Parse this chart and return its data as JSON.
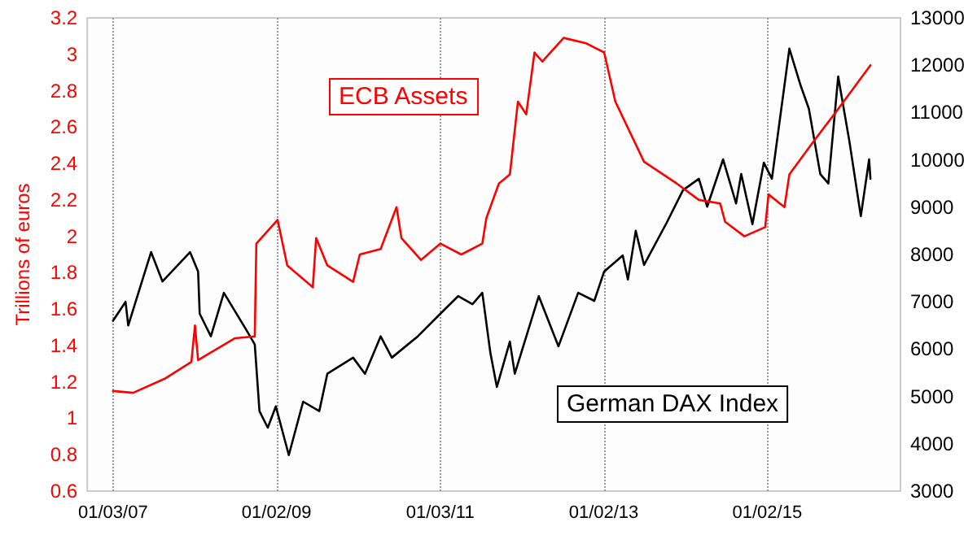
{
  "chart_data": {
    "type": "line",
    "ylabel": "Trillions of euros",
    "xlim": [
      "2006-09-10",
      "2016-08-19"
    ],
    "xticks": [
      {
        "value": "2007-01-03",
        "label": "01/03/07"
      },
      {
        "value": "2009-01-02",
        "label": "01/02/09"
      },
      {
        "value": "2011-01-03",
        "label": "01/03/11"
      },
      {
        "value": "2013-01-02",
        "label": "01/02/13"
      },
      {
        "value": "2015-01-02",
        "label": "01/02/15"
      }
    ],
    "ylim": [
      0.6,
      3.2
    ],
    "yticks": [
      0.6,
      0.8,
      1,
      1.2,
      1.4,
      1.6,
      1.8,
      2,
      2.2,
      2.4,
      2.6,
      2.8,
      3,
      3.2
    ],
    "y2lim": [
      3000,
      13000
    ],
    "y2ticks": [
      3000,
      4000,
      5000,
      6000,
      7000,
      8000,
      9000,
      10000,
      11000,
      12000,
      13000
    ],
    "grid": "x",
    "legend": false,
    "marker": "none",
    "line_style": "solid",
    "series": [
      {
        "name": "ECB Assets",
        "color": "#ff0000",
        "x": [
          "2007-01-03",
          "2007-04-03",
          "2007-08-26",
          "2007-12-19",
          "2008-01-04",
          "2008-01-18",
          "2008-07-01",
          "2008-09-27",
          "2008-10-04",
          "2009-01-07",
          "2009-02-19",
          "2009-06-13",
          "2009-06-28",
          "2009-08-17",
          "2009-12-10",
          "2010-01-09",
          "2010-04-12",
          "2010-06-22",
          "2010-07-14",
          "2010-10-09",
          "2011-01-04",
          "2011-04-07",
          "2011-07-10",
          "2011-07-28",
          "2011-09-22",
          "2011-11-10",
          "2011-12-16",
          "2012-01-22",
          "2012-02-28",
          "2012-04-03",
          "2012-07-07",
          "2012-10-16",
          "2013-01-04",
          "2013-02-23",
          "2013-07-01",
          "2013-11-24",
          "2014-03-03",
          "2014-06-06",
          "2014-06-28",
          "2014-09-22",
          "2014-12-24",
          "2015-01-08",
          "2015-03-20",
          "2015-04-11",
          "2015-07-21",
          "2015-11-15",
          "2016-04-07"
        ],
        "values": [
          1.15,
          1.14,
          1.22,
          1.31,
          1.51,
          1.32,
          1.44,
          1.45,
          1.96,
          2.09,
          1.84,
          1.72,
          1.99,
          1.84,
          1.75,
          1.9,
          1.93,
          2.16,
          1.99,
          1.87,
          1.96,
          1.9,
          1.96,
          2.1,
          2.29,
          2.34,
          2.74,
          2.67,
          3.01,
          2.96,
          3.09,
          3.06,
          3.01,
          2.74,
          2.41,
          2.29,
          2.2,
          2.18,
          2.08,
          2.0,
          2.05,
          2.23,
          2.16,
          2.34,
          2.51,
          2.7,
          2.94
        ]
      },
      {
        "name": "German DAX Index",
        "color": "#000000",
        "axis": "y2",
        "x": [
          "2007-01-03",
          "2007-02-28",
          "2007-03-12",
          "2007-06-22",
          "2007-08-12",
          "2007-12-13",
          "2008-01-18",
          "2008-01-25",
          "2008-03-15",
          "2008-05-12",
          "2008-08-21",
          "2008-09-27",
          "2008-10-18",
          "2008-11-24",
          "2008-12-30",
          "2009-02-26",
          "2009-05-01",
          "2009-07-12",
          "2009-08-17",
          "2009-12-10",
          "2010-02-01",
          "2010-04-12",
          "2010-06-01",
          "2010-09-25",
          "2011-01-04",
          "2011-03-24",
          "2011-05-27",
          "2011-07-10",
          "2011-08-15",
          "2011-09-13",
          "2011-11-10",
          "2011-12-02",
          "2012-03-18",
          "2012-06-14",
          "2012-09-10",
          "2012-11-21",
          "2013-01-04",
          "2013-03-28",
          "2013-04-20",
          "2013-05-25",
          "2013-07-01",
          "2013-10-10",
          "2013-12-22",
          "2014-03-03",
          "2014-04-09",
          "2014-06-19",
          "2014-08-16",
          "2014-09-08",
          "2014-10-28",
          "2014-12-18",
          "2015-01-23",
          "2015-02-28",
          "2015-04-11",
          "2015-06-01",
          "2015-07-07",
          "2015-08-27",
          "2015-10-02",
          "2015-11-15",
          "2016-01-04",
          "2016-02-24",
          "2016-04-01",
          "2016-04-07"
        ],
        "values": [
          6600,
          7000,
          6500,
          8050,
          7430,
          8050,
          7640,
          6750,
          6270,
          7190,
          6400,
          6100,
          4690,
          4340,
          4790,
          3760,
          4890,
          4690,
          5480,
          5820,
          5480,
          6270,
          5820,
          6270,
          6750,
          7120,
          6950,
          7190,
          5920,
          5200,
          6160,
          5480,
          7120,
          6060,
          7190,
          7020,
          7640,
          7980,
          7470,
          8500,
          7780,
          8670,
          9360,
          9600,
          9010,
          10010,
          9080,
          9700,
          8640,
          9940,
          9600,
          10870,
          12350,
          11560,
          11080,
          9700,
          9500,
          11760,
          10390,
          8810,
          10010,
          9600
        ]
      }
    ]
  }
}
